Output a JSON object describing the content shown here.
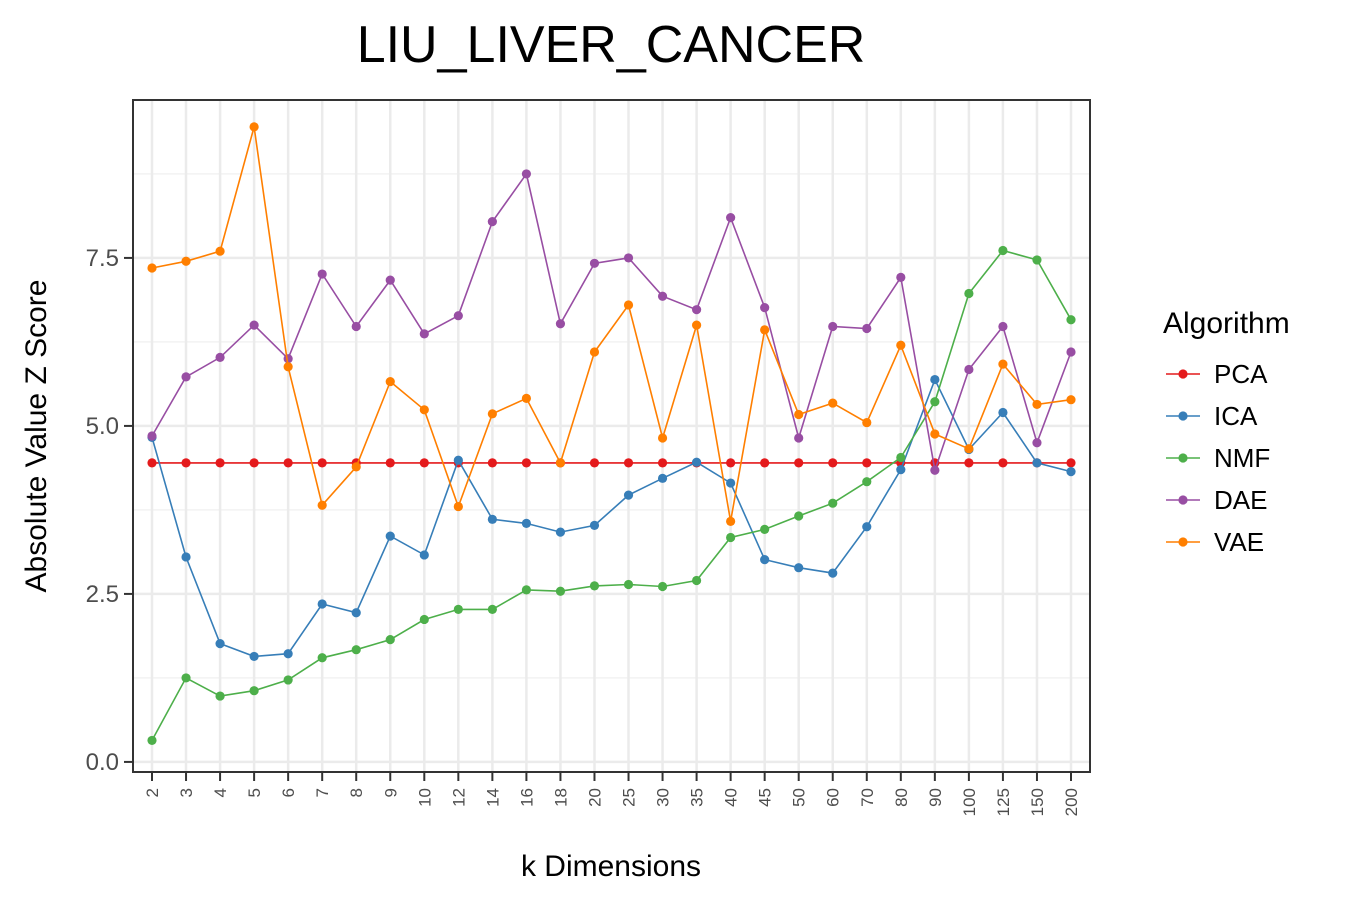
{
  "chart_data": {
    "type": "line",
    "title": "LIU_LIVER_CANCER",
    "xlabel": "k Dimensions",
    "ylabel": "Absolute Value Z Score",
    "x_axis_type": "categorical",
    "categories": [
      "2",
      "3",
      "4",
      "5",
      "6",
      "7",
      "8",
      "9",
      "10",
      "12",
      "14",
      "16",
      "18",
      "20",
      "25",
      "30",
      "35",
      "40",
      "45",
      "50",
      "60",
      "70",
      "80",
      "90",
      "100",
      "125",
      "150",
      "200"
    ],
    "yticks": [
      0.0,
      2.5,
      5.0,
      7.5
    ],
    "ytick_labels": [
      "0.0",
      "2.5",
      "5.0",
      "7.5"
    ],
    "ylim": [
      -0.15,
      9.85
    ],
    "grid": true,
    "legend": {
      "title": "Algorithm",
      "position": "right"
    },
    "series": [
      {
        "name": "PCA",
        "color": "#e41a1c",
        "values": [
          4.45,
          4.45,
          4.45,
          4.45,
          4.45,
          4.45,
          4.45,
          4.45,
          4.45,
          4.45,
          4.45,
          4.45,
          4.45,
          4.45,
          4.45,
          4.45,
          4.45,
          4.45,
          4.45,
          4.45,
          4.45,
          4.45,
          4.45,
          4.45,
          4.45,
          4.45,
          4.45,
          4.45
        ]
      },
      {
        "name": "ICA",
        "color": "#377eb8",
        "values": [
          4.83,
          3.05,
          1.76,
          1.57,
          1.61,
          2.35,
          2.22,
          3.36,
          3.08,
          4.49,
          3.61,
          3.55,
          3.42,
          3.52,
          3.97,
          4.22,
          4.46,
          4.15,
          3.01,
          2.89,
          2.81,
          3.5,
          4.35,
          5.69,
          4.65,
          5.2,
          4.45,
          4.32
        ]
      },
      {
        "name": "NMF",
        "color": "#4daf4a",
        "values": [
          0.32,
          1.25,
          0.98,
          1.06,
          1.22,
          1.55,
          1.67,
          1.82,
          2.12,
          2.27,
          2.27,
          2.56,
          2.54,
          2.62,
          2.64,
          2.61,
          2.7,
          3.34,
          3.46,
          3.66,
          3.85,
          4.17,
          4.53,
          5.36,
          6.97,
          7.61,
          7.47,
          6.58
        ]
      },
      {
        "name": "DAE",
        "color": "#984ea3",
        "values": [
          4.85,
          5.73,
          6.02,
          6.5,
          6.0,
          7.26,
          6.48,
          7.17,
          6.37,
          6.64,
          8.04,
          8.75,
          6.52,
          7.42,
          7.5,
          6.93,
          6.73,
          8.1,
          6.76,
          4.82,
          6.48,
          6.45,
          7.21,
          4.34,
          5.84,
          6.48,
          4.75,
          6.1
        ]
      },
      {
        "name": "VAE",
        "color": "#ff7f00",
        "values": [
          7.35,
          7.45,
          7.6,
          9.45,
          5.88,
          3.82,
          4.39,
          5.66,
          5.24,
          3.8,
          5.18,
          5.41,
          4.45,
          6.1,
          6.8,
          4.82,
          6.5,
          3.58,
          6.43,
          5.17,
          5.34,
          5.05,
          6.2,
          4.88,
          4.66,
          5.92,
          5.32,
          5.39
        ]
      }
    ]
  }
}
